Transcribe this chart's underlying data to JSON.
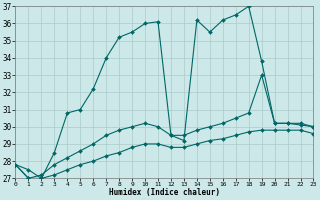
{
  "xlabel": "Humidex (Indice chaleur)",
  "bg_color": "#cce8e8",
  "grid_color": "#aacccc",
  "line_color": "#006666",
  "xlim": [
    0,
    23
  ],
  "ylim": [
    27,
    37
  ],
  "xticks": [
    0,
    1,
    2,
    3,
    4,
    5,
    6,
    7,
    8,
    9,
    10,
    11,
    12,
    13,
    14,
    15,
    16,
    17,
    18,
    19,
    20,
    21,
    22,
    23
  ],
  "yticks": [
    27,
    28,
    29,
    30,
    31,
    32,
    33,
    34,
    35,
    36,
    37
  ],
  "curves": [
    {
      "x": [
        0,
        1,
        2,
        3,
        4,
        5,
        6,
        7,
        8,
        9,
        10,
        11,
        12,
        13,
        14,
        15,
        16,
        17,
        18,
        19,
        20,
        21,
        22,
        23
      ],
      "y": [
        27.8,
        27.5,
        27.0,
        28.5,
        30.8,
        31.0,
        32.2,
        34.0,
        35.2,
        35.5,
        36.0,
        36.1,
        29.5,
        29.2,
        36.2,
        35.5,
        36.2,
        36.5,
        37.0,
        33.8,
        30.2,
        30.2,
        30.1,
        30.0
      ]
    },
    {
      "x": [
        0,
        1,
        2,
        3,
        4,
        5,
        6,
        7,
        8,
        9,
        10,
        11,
        12,
        13,
        14,
        15,
        16,
        17,
        18,
        19,
        20,
        21,
        22,
        23
      ],
      "y": [
        27.8,
        27.0,
        27.2,
        27.8,
        28.2,
        28.6,
        29.0,
        29.5,
        29.8,
        30.0,
        30.2,
        30.0,
        29.5,
        29.5,
        29.8,
        30.0,
        30.2,
        30.5,
        30.8,
        33.0,
        30.2,
        30.2,
        30.2,
        30.0
      ]
    },
    {
      "x": [
        0,
        1,
        2,
        3,
        4,
        5,
        6,
        7,
        8,
        9,
        10,
        11,
        12,
        13,
        14,
        15,
        16,
        17,
        18,
        19,
        20,
        21,
        22,
        23
      ],
      "y": [
        27.8,
        27.0,
        27.0,
        27.2,
        27.5,
        27.8,
        28.0,
        28.3,
        28.5,
        28.8,
        29.0,
        29.0,
        28.8,
        28.8,
        29.0,
        29.2,
        29.3,
        29.5,
        29.7,
        29.8,
        29.8,
        29.8,
        29.8,
        29.6
      ]
    }
  ]
}
